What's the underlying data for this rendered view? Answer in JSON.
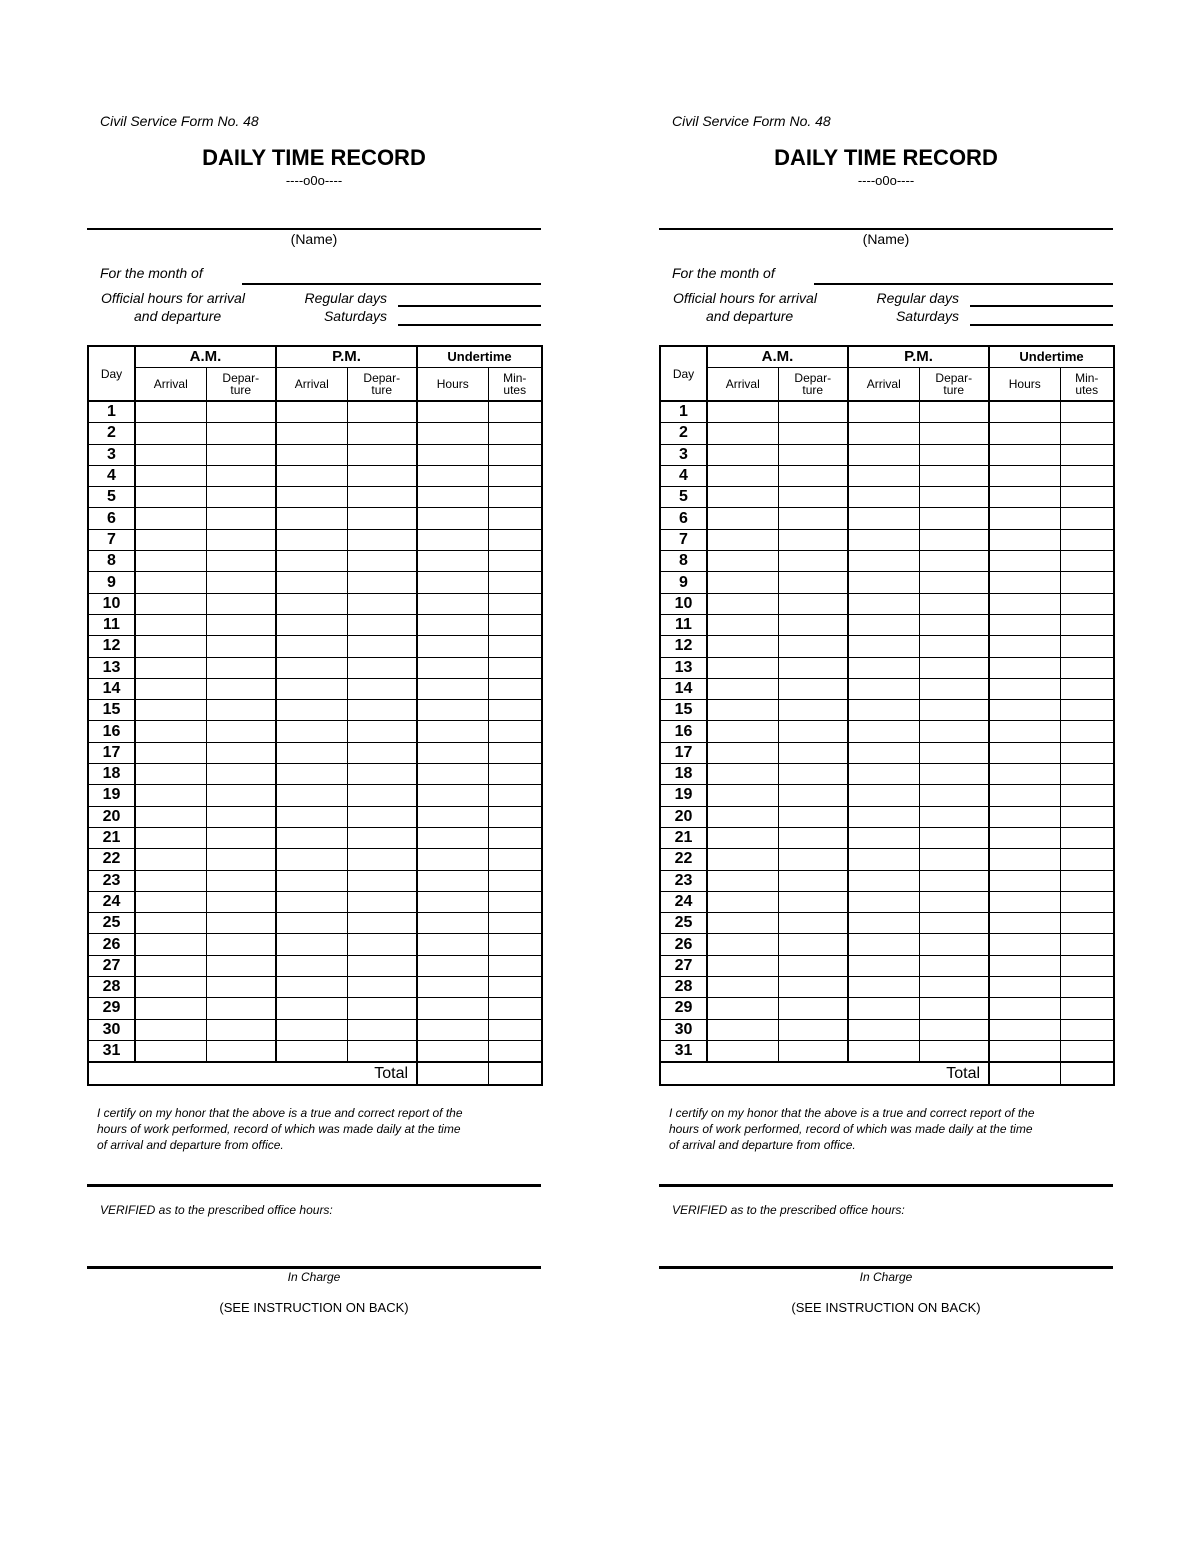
{
  "forms": [
    {
      "form_number": "Civil Service Form No. 48",
      "title": "DAILY TIME RECORD",
      "ornament": "----o0o----",
      "name_label": "(Name)",
      "month_label": "For the month of",
      "official_hours_label_1": "Official hours for arrival",
      "official_hours_label_2": "and departure",
      "regular_days_label": "Regular days",
      "saturdays_label": "Saturdays",
      "table": {
        "day_header": "Day",
        "am_header": "A.M.",
        "pm_header": "P.M.",
        "undertime_header": "Undertime",
        "arrival": "Arrival",
        "departure_1": "Depar-",
        "departure_2": "ture",
        "hours": "Hours",
        "minutes_1": "Min-",
        "minutes_2": "utes",
        "days": [
          "1",
          "2",
          "3",
          "4",
          "5",
          "6",
          "7",
          "8",
          "9",
          "10",
          "11",
          "12",
          "13",
          "14",
          "15",
          "16",
          "17",
          "18",
          "19",
          "20",
          "21",
          "22",
          "23",
          "24",
          "25",
          "26",
          "27",
          "28",
          "29",
          "30",
          "31"
        ],
        "total_label": "Total"
      },
      "cert_line_1": "I certify on my honor that the above is a true and correct report of the",
      "cert_line_2": "hours of work performed, record of which was made daily at the time",
      "cert_line_3": "of arrival and departure from office.",
      "verified_label": "VERIFIED as to the prescribed office hours:",
      "in_charge_label": "In Charge",
      "instruction_note": "(SEE INSTRUCTION ON BACK)"
    },
    {
      "form_number": "Civil Service Form No. 48",
      "title": "DAILY TIME RECORD",
      "ornament": "----o0o----",
      "name_label": "(Name)",
      "month_label": "For the month of",
      "official_hours_label_1": "Official hours for arrival",
      "official_hours_label_2": "and departure",
      "regular_days_label": "Regular days",
      "saturdays_label": "Saturdays",
      "table": {
        "day_header": "Day",
        "am_header": "A.M.",
        "pm_header": "P.M.",
        "undertime_header": "Undertime",
        "arrival": "Arrival",
        "departure_1": "Depar-",
        "departure_2": "ture",
        "hours": "Hours",
        "minutes_1": "Min-",
        "minutes_2": "utes",
        "days": [
          "1",
          "2",
          "3",
          "4",
          "5",
          "6",
          "7",
          "8",
          "9",
          "10",
          "11",
          "12",
          "13",
          "14",
          "15",
          "16",
          "17",
          "18",
          "19",
          "20",
          "21",
          "22",
          "23",
          "24",
          "25",
          "26",
          "27",
          "28",
          "29",
          "30",
          "31"
        ],
        "total_label": "Total"
      },
      "cert_line_1": "I certify on my honor that the above is a true and correct report of the",
      "cert_line_2": "hours of work performed, record of which was made daily at the time",
      "cert_line_3": "of arrival and departure from office.",
      "verified_label": "VERIFIED as to the prescribed office hours:",
      "in_charge_label": "In Charge",
      "instruction_note": "(SEE INSTRUCTION ON BACK)"
    }
  ]
}
